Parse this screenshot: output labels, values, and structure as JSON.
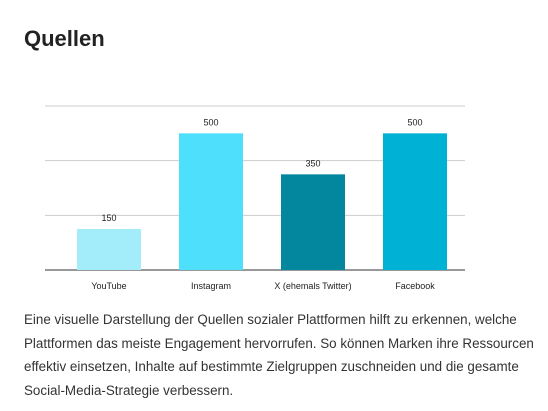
{
  "chart_data": {
    "type": "bar",
    "title": "Quellen",
    "categories": [
      "YouTube",
      "Instagram",
      "X (ehemals Twitter)",
      "Facebook"
    ],
    "values": [
      150,
      500,
      350,
      500
    ],
    "colors": [
      "#a3edfb",
      "#4ddffb",
      "#02879f",
      "#00b1d6"
    ],
    "ylim": [
      0,
      600
    ],
    "yticks": [
      0,
      200,
      400,
      600
    ],
    "grid": true,
    "description": "Eine visuelle Darstellung der Quellen sozialer Plattformen hilft zu erkennen, welche Plattformen das meiste Engagement hervorrufen. So können Marken ihre Ressourcen effektiv einsetzen, Inhalte auf bestimmte Zielgruppen zuschneiden und die gesamte Social-Media-Strategie verbessern."
  }
}
